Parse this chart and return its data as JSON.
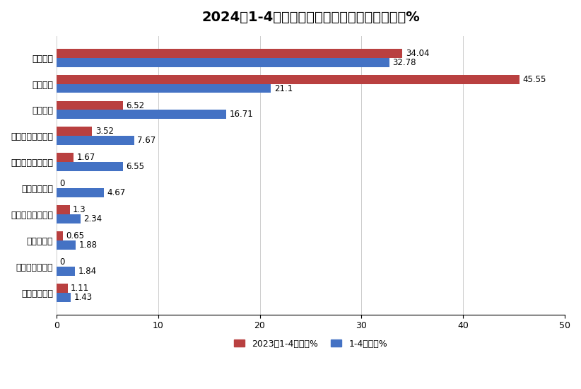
{
  "title": "2024年1-4月新能源搅拌车占比及去年同期占比%",
  "categories": [
    "广州穗景客车",
    "河南犀重新能源",
    "福田戴姆勒",
    "洛阳中集凌宇汽车",
    "中国重汽集团",
    "芜湖中集瑞江汽车",
    "远程新能源商用车",
    "中联重科",
    "三一汽车",
    "徐工重卡"
  ],
  "values_2023": [
    1.11,
    0,
    0.65,
    1.3,
    0,
    1.67,
    3.52,
    6.52,
    45.55,
    34.04
  ],
  "values_2024": [
    1.43,
    1.84,
    1.88,
    2.34,
    4.67,
    6.55,
    7.67,
    16.71,
    21.1,
    32.78
  ],
  "color_2023": "#B94040",
  "color_2024": "#4472C4",
  "legend_2023": "2023年1-4月占比%",
  "legend_2024": "1-4月占比%",
  "xlim": [
    0,
    50
  ],
  "xticks": [
    0,
    10,
    20,
    30,
    40,
    50
  ],
  "bar_height": 0.35,
  "background_color": "#FFFFFF",
  "title_fontsize": 14,
  "label_fontsize": 9,
  "tick_fontsize": 9,
  "annotation_fontsize": 8.5
}
